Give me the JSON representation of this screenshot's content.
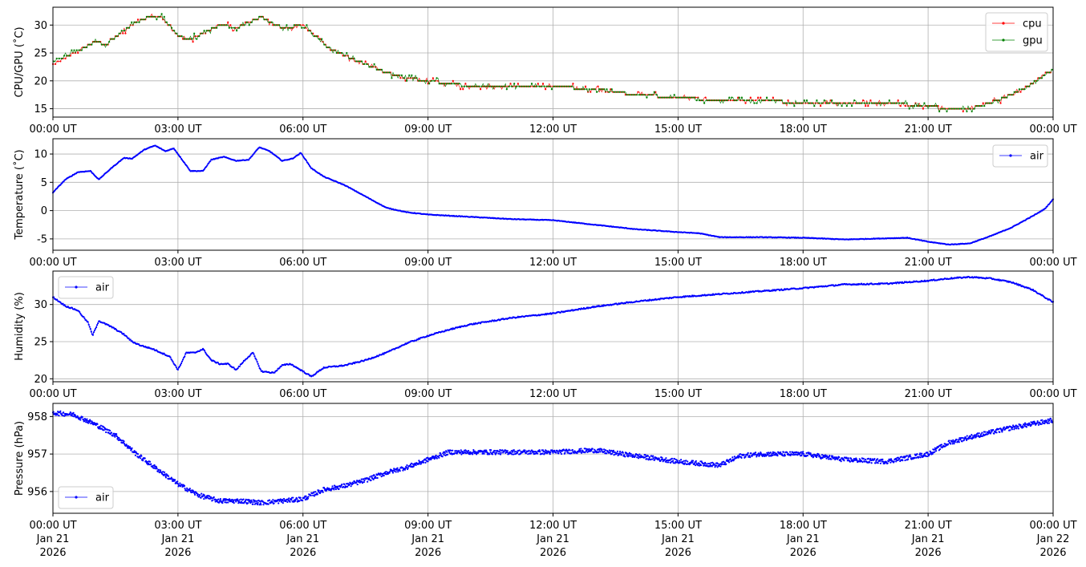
{
  "colors": {
    "cpu": "#ff0000",
    "gpu": "#008000",
    "air": "#0000ff",
    "grid": "#b0b0b0"
  },
  "chart_data": [
    {
      "type": "line",
      "ylabel": "CPU/GPU (˚C)",
      "x_range": [
        "2026-01-21T00:00Z",
        "2026-01-22T00:00Z"
      ],
      "ylim": [
        13.5,
        33.2
      ],
      "yticks": [
        15,
        20,
        25,
        30
      ],
      "xtick_labels": [
        "00:00 UT",
        "03:00 UT",
        "06:00 UT",
        "09:00 UT",
        "12:00 UT",
        "15:00 UT",
        "18:00 UT",
        "21:00 UT",
        "00:00 UT"
      ],
      "grid": true,
      "legend_position": "upper right",
      "series": [
        {
          "name": "cpu",
          "color": "#ff0000",
          "x_hours": [
            0,
            0.5,
            1,
            1.3,
            1.6,
            2,
            2.3,
            2.6,
            3,
            3.3,
            3.6,
            4,
            4.4,
            4.7,
            5,
            5.3,
            5.6,
            6,
            6.3,
            6.6,
            7,
            7.5,
            8,
            8.5,
            9,
            9.5,
            10,
            11,
            12,
            13,
            14,
            15,
            16,
            17,
            18,
            19,
            20,
            21,
            21.5,
            22,
            22.5,
            23,
            23.5,
            24
          ],
          "values": [
            23,
            25,
            27,
            26.5,
            28.5,
            30.5,
            31.5,
            31.5,
            28,
            27.5,
            28.5,
            30,
            29.5,
            30.5,
            31.5,
            30,
            29.5,
            30,
            28,
            26,
            24.5,
            23,
            21.5,
            20.5,
            20,
            19.5,
            19,
            19,
            19,
            18.5,
            17.5,
            17,
            16.5,
            16.5,
            16,
            16,
            16,
            15.5,
            15,
            15,
            16,
            17.5,
            19.5,
            22
          ]
        },
        {
          "name": "gpu",
          "color": "#008000",
          "x_hours": [
            0,
            0.5,
            1,
            1.3,
            1.6,
            2,
            2.3,
            2.6,
            3,
            3.3,
            3.6,
            4,
            4.4,
            4.7,
            5,
            5.3,
            5.6,
            6,
            6.3,
            6.6,
            7,
            7.5,
            8,
            8.5,
            9,
            9.5,
            10,
            11,
            12,
            13,
            14,
            15,
            16,
            17,
            18,
            19,
            20,
            21,
            21.5,
            22,
            22.5,
            23,
            23.5,
            24
          ],
          "values": [
            23.5,
            25,
            27,
            26.5,
            28.5,
            30.5,
            31.5,
            31.5,
            28,
            27.5,
            28.5,
            30,
            29.5,
            30.5,
            31.5,
            30,
            29.5,
            30,
            28,
            26,
            24.5,
            23,
            21.5,
            20.5,
            20,
            19.5,
            19,
            19,
            19,
            18.5,
            17.5,
            17,
            16.5,
            16.5,
            16,
            16,
            16,
            15.5,
            15,
            15,
            16,
            17.5,
            19.5,
            22
          ]
        }
      ]
    },
    {
      "type": "line",
      "ylabel": "Temperature (˚C)",
      "x_range": [
        "2026-01-21T00:00Z",
        "2026-01-22T00:00Z"
      ],
      "ylim": [
        -7,
        12.7
      ],
      "yticks": [
        -5,
        0,
        5,
        10
      ],
      "xtick_labels": [
        "00:00 UT",
        "03:00 UT",
        "06:00 UT",
        "09:00 UT",
        "12:00 UT",
        "15:00 UT",
        "18:00 UT",
        "21:00 UT",
        "00:00 UT"
      ],
      "grid": true,
      "legend_position": "upper right",
      "series": [
        {
          "name": "air",
          "color": "#0000ff",
          "x_hours": [
            0,
            0.3,
            0.6,
            0.9,
            1.1,
            1.4,
            1.7,
            1.9,
            2.2,
            2.45,
            2.7,
            2.9,
            3.3,
            3.6,
            3.8,
            4.1,
            4.4,
            4.7,
            4.95,
            5.2,
            5.5,
            5.75,
            5.95,
            6.2,
            6.5,
            7,
            7.5,
            8,
            8.5,
            9,
            10,
            11,
            12,
            13,
            14,
            15,
            15.5,
            16,
            17,
            18,
            19,
            20,
            20.5,
            21,
            21.5,
            22,
            22.5,
            23,
            23.5,
            23.8,
            24
          ],
          "values": [
            3.2,
            5.5,
            6.8,
            7,
            5.5,
            7.5,
            9.3,
            9.2,
            10.8,
            11.5,
            10.5,
            11,
            7,
            7,
            9,
            9.5,
            8.8,
            9,
            11.2,
            10.5,
            8.8,
            9.2,
            10.2,
            7.5,
            6,
            4.5,
            2.5,
            0.5,
            -0.3,
            -0.7,
            -1.1,
            -1.5,
            -1.7,
            -2.5,
            -3.3,
            -3.8,
            -4,
            -4.7,
            -4.7,
            -4.8,
            -5.1,
            -4.9,
            -4.8,
            -5.5,
            -6,
            -5.8,
            -4.5,
            -3,
            -1,
            0.3,
            2
          ]
        }
      ]
    },
    {
      "type": "line",
      "ylabel": "Humidity (%)",
      "x_range": [
        "2026-01-21T00:00Z",
        "2026-01-22T00:00Z"
      ],
      "ylim": [
        19.6,
        34.5
      ],
      "yticks": [
        20,
        25,
        30
      ],
      "xtick_labels": [
        "00:00 UT",
        "03:00 UT",
        "06:00 UT",
        "09:00 UT",
        "12:00 UT",
        "15:00 UT",
        "18:00 UT",
        "21:00 UT",
        "00:00 UT"
      ],
      "grid": true,
      "legend_position": "upper left",
      "series": [
        {
          "name": "air",
          "color": "#0000ff",
          "x_hours": [
            0,
            0.3,
            0.6,
            0.85,
            0.95,
            1.1,
            1.4,
            1.7,
            1.9,
            2.1,
            2.4,
            2.6,
            2.8,
            3,
            3.2,
            3.4,
            3.6,
            3.8,
            4,
            4.2,
            4.4,
            4.6,
            4.8,
            5,
            5.3,
            5.5,
            5.7,
            6,
            6.2,
            6.5,
            7,
            7.5,
            8,
            8.5,
            9,
            9.5,
            10,
            11,
            12,
            13,
            14,
            15,
            16,
            17,
            18,
            19,
            20,
            21,
            21.5,
            22,
            22.5,
            23,
            23.5,
            24
          ],
          "values": [
            31,
            29.8,
            29.2,
            27.5,
            25.8,
            27.8,
            27,
            26,
            25,
            24.5,
            24,
            23.5,
            23,
            21.2,
            23.5,
            23.5,
            24,
            22.5,
            22,
            22,
            21.2,
            22.5,
            23.5,
            21,
            20.8,
            21.8,
            22,
            21,
            20.3,
            21.5,
            21.8,
            22.5,
            23.5,
            24.8,
            25.8,
            26.6,
            27.3,
            28.2,
            28.8,
            29.7,
            30.4,
            31,
            31.4,
            31.8,
            32.2,
            32.7,
            32.8,
            33.2,
            33.5,
            33.7,
            33.5,
            33,
            32,
            30.3
          ]
        }
      ]
    },
    {
      "type": "scatter",
      "ylabel": "Pressure (hPa)",
      "x_range": [
        "2026-01-21T00:00Z",
        "2026-01-22T00:00Z"
      ],
      "ylim": [
        955.42,
        958.35
      ],
      "yticks": [
        956,
        957,
        958
      ],
      "xtick_labels": [
        "00:00 UT\nJan 21\n2026",
        "03:00 UT\nJan 21\n2026",
        "06:00 UT\nJan 21\n2026",
        "09:00 UT\nJan 21\n2026",
        "12:00 UT\nJan 21\n2026",
        "15:00 UT\nJan 21\n2026",
        "18:00 UT\nJan 21\n2026",
        "21:00 UT\nJan 21\n2026",
        "00:00 UT\nJan 22\n2026"
      ],
      "grid": true,
      "legend_position": "lower left",
      "series": [
        {
          "name": "air",
          "color": "#0000ff",
          "x_hours": [
            0,
            0.5,
            1,
            1.5,
            2,
            2.5,
            3,
            3.5,
            4,
            4.5,
            5,
            5.5,
            6,
            6.5,
            7,
            7.5,
            8,
            8.5,
            9,
            9.5,
            10,
            11,
            12,
            13,
            14,
            15,
            15.5,
            16,
            16.5,
            17,
            18,
            19,
            20,
            21,
            21.5,
            22,
            23,
            24
          ],
          "values": [
            958.1,
            958.05,
            957.8,
            957.5,
            957,
            956.6,
            956.2,
            955.9,
            955.75,
            955.75,
            955.7,
            955.75,
            955.8,
            956.05,
            956.15,
            956.3,
            956.5,
            956.65,
            956.85,
            957.05,
            957.05,
            957.05,
            957.05,
            957.1,
            956.95,
            956.8,
            956.75,
            956.7,
            956.95,
            957.0,
            957.0,
            956.85,
            956.8,
            957.0,
            957.3,
            957.45,
            957.7,
            957.9
          ]
        }
      ]
    }
  ]
}
